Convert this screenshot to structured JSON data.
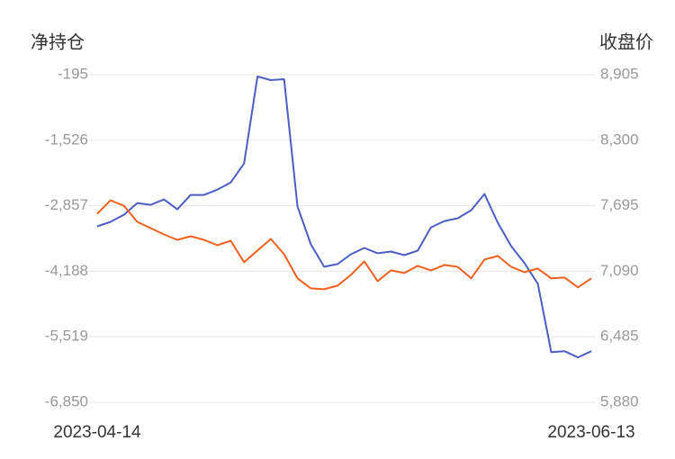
{
  "chart_data": {
    "type": "line",
    "y_axis_title": "净持仓",
    "y2_axis_title": "收盘价",
    "categories": [
      "2023-04-14",
      null,
      null,
      null,
      null,
      null,
      null,
      null,
      null,
      null,
      null,
      null,
      null,
      null,
      null,
      null,
      null,
      null,
      null,
      null,
      null,
      null,
      null,
      null,
      null,
      null,
      null,
      null,
      null,
      null,
      null,
      null,
      null,
      null,
      null,
      null,
      null,
      "2023-06-13"
    ],
    "series": [
      {
        "name": "净持仓",
        "color": "#4a5fc1",
        "axis": "y",
        "values": [
          -3276,
          -3185,
          -3039,
          -2802,
          -2839,
          -2729,
          -2930,
          -2638,
          -2638,
          -2529,
          -2383,
          -2000,
          -231,
          -304,
          -286,
          -2875,
          -3641,
          -4097,
          -4042,
          -3842,
          -3714,
          -3823,
          -3787,
          -3860,
          -3769,
          -3295,
          -3167,
          -3112,
          -2948,
          -2620,
          -3203,
          -3678,
          -4024,
          -4443,
          -5829,
          -5811,
          -5938,
          -5811
        ]
      },
      {
        "name": "收盘价",
        "color": "#f0601e",
        "axis": "y2",
        "values": [
          7620,
          7745,
          7695,
          7546,
          7488,
          7430,
          7380,
          7413,
          7380,
          7330,
          7372,
          7173,
          7281,
          7388,
          7247,
          7024,
          6932,
          6924,
          6957,
          7057,
          7181,
          6999,
          7098,
          7073,
          7140,
          7098,
          7148,
          7131,
          7024,
          7198,
          7231,
          7131,
          7082,
          7115,
          7024,
          7032,
          6941,
          7024
        ]
      }
    ],
    "ylim": [
      -6850,
      -195
    ],
    "yticks": [
      -195,
      {
        "value": -1526,
        "label": "-1,526"
      },
      {
        "value": -2857,
        "label": "-2,857"
      },
      {
        "value": -4188,
        "label": "-4,188"
      },
      {
        "value": -5519,
        "label": "-5,519"
      },
      {
        "value": -6850,
        "label": "-6,850"
      }
    ],
    "y2lim": [
      5880,
      8905
    ],
    "y2ticks": [
      {
        "value": 8905,
        "label": "8,905"
      },
      {
        "value": 8300,
        "label": "8,300"
      },
      {
        "value": 7695,
        "label": "7,695"
      },
      {
        "value": 7090,
        "label": "7,090"
      },
      {
        "value": 6485,
        "label": "6,485"
      },
      {
        "value": 5880,
        "label": "5,880"
      }
    ],
    "grid": true
  }
}
